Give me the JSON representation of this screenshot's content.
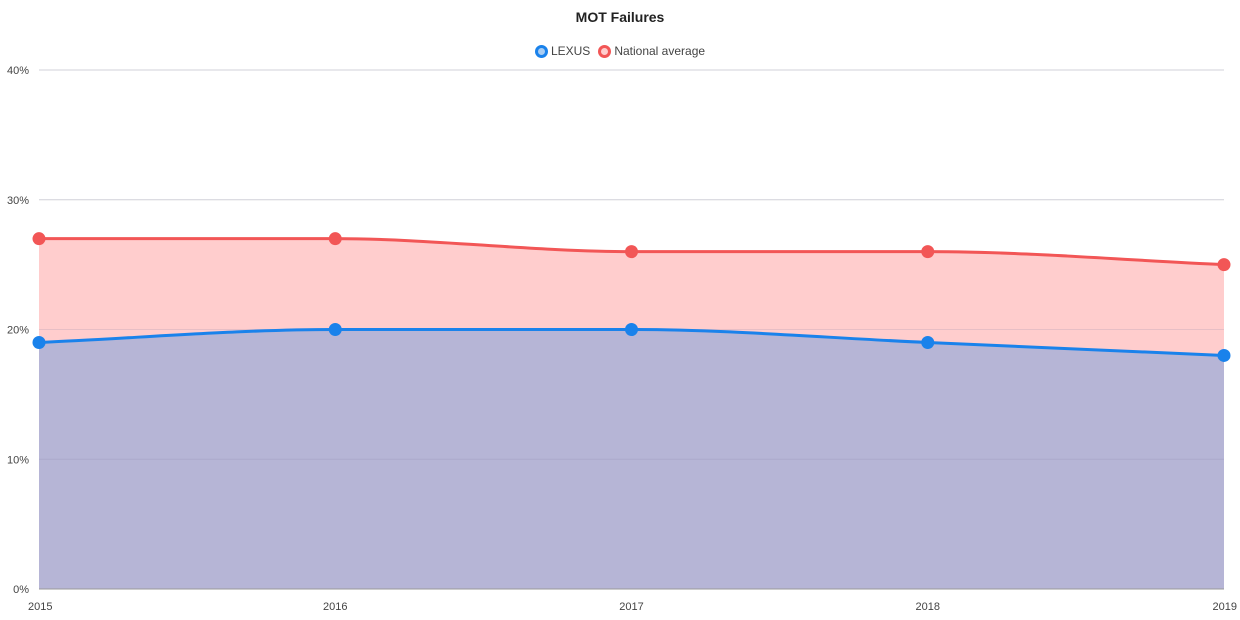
{
  "chart_data": {
    "type": "area",
    "title": "MOT Failures",
    "x": [
      "2015",
      "2016",
      "2017",
      "2018",
      "2019"
    ],
    "series": [
      {
        "name": "LEXUS",
        "values": [
          19,
          20,
          20,
          19,
          18
        ],
        "line_color": "#1a82eb",
        "fill_color": "#b6b5d6",
        "marker_fill": "#a9cdf3"
      },
      {
        "name": "National average",
        "values": [
          27,
          27,
          26,
          26,
          25
        ],
        "line_color": "#f25656",
        "fill_color": "#ffcdcd",
        "marker_fill": "#ffcdcd"
      }
    ],
    "ylim": [
      0,
      40
    ],
    "yticks": [
      "0%",
      "10%",
      "20%",
      "30%",
      "40%"
    ],
    "ytick_values": [
      0,
      10,
      20,
      30,
      40
    ],
    "grid": true,
    "legend_position": "top-center"
  }
}
